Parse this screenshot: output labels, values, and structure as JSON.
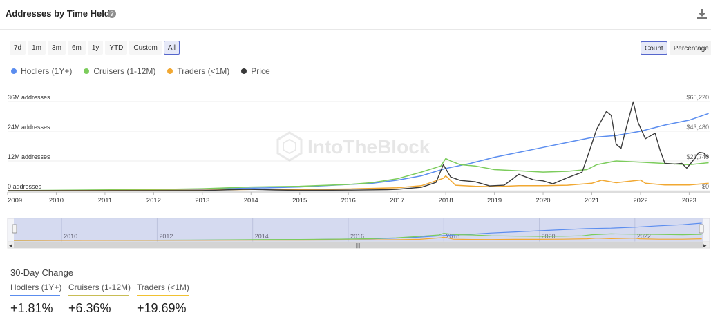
{
  "header": {
    "title": "Addresses by Time Held",
    "help_icon": "?"
  },
  "toolbar": {
    "ranges": [
      "7d",
      "1m",
      "3m",
      "6m",
      "1y",
      "YTD",
      "Custom",
      "All"
    ],
    "active_range": "All",
    "modes": [
      "Count",
      "Percentage"
    ],
    "active_mode": "Count"
  },
  "legend": [
    {
      "label": "Hodlers (1Y+)",
      "color": "#5b8def"
    },
    {
      "label": "Cruisers (1-12M)",
      "color": "#7ccc5c"
    },
    {
      "label": "Traders (<1M)",
      "color": "#f1a832"
    },
    {
      "label": "Price",
      "color": "#3a3a3a"
    }
  ],
  "watermark": "IntoTheBlock",
  "chart_data": {
    "type": "line",
    "x_ticks": [
      "2009",
      "2010",
      "2011",
      "2012",
      "2013",
      "2014",
      "2015",
      "2016",
      "2017",
      "2018",
      "2019",
      "2020",
      "2021",
      "2022",
      "2023"
    ],
    "y_left_ticks": [
      "0 addresses",
      "12M addresses",
      "24M addresses",
      "36M addresses"
    ],
    "y_left_range": [
      0,
      36
    ],
    "y_right_ticks": [
      "$0",
      "$21,740",
      "$43,480",
      "$65,220"
    ],
    "y_right_range": [
      0,
      65220
    ],
    "grid": true,
    "series": [
      {
        "name": "Hodlers (1Y+)",
        "color": "#5b8def",
        "points": [
          [
            2009.0,
            0
          ],
          [
            2011.0,
            0.1
          ],
          [
            2012.0,
            0.3
          ],
          [
            2013.0,
            0.6
          ],
          [
            2014.0,
            1.0
          ],
          [
            2015.0,
            1.5
          ],
          [
            2016.0,
            2.5
          ],
          [
            2016.5,
            3.0
          ],
          [
            2017.0,
            4.2
          ],
          [
            2017.5,
            6.0
          ],
          [
            2018.0,
            9.0
          ],
          [
            2018.5,
            11.0
          ],
          [
            2019.0,
            13.5
          ],
          [
            2019.5,
            15.5
          ],
          [
            2020.0,
            17.5
          ],
          [
            2020.5,
            19.5
          ],
          [
            2021.0,
            21.5
          ],
          [
            2021.5,
            22.3
          ],
          [
            2022.0,
            24.0
          ],
          [
            2022.5,
            26.5
          ],
          [
            2023.0,
            28.5
          ],
          [
            2023.4,
            31.2
          ]
        ]
      },
      {
        "name": "Cruisers (1-12M)",
        "color": "#7ccc5c",
        "points": [
          [
            2009.0,
            0
          ],
          [
            2012.0,
            0.5
          ],
          [
            2013.0,
            0.8
          ],
          [
            2014.0,
            1.5
          ],
          [
            2015.0,
            1.8
          ],
          [
            2016.0,
            2.5
          ],
          [
            2016.5,
            3.3
          ],
          [
            2017.0,
            4.8
          ],
          [
            2017.5,
            7.5
          ],
          [
            2017.9,
            10.0
          ],
          [
            2018.0,
            13.0
          ],
          [
            2018.1,
            12.0
          ],
          [
            2018.3,
            10.5
          ],
          [
            2018.6,
            10.0
          ],
          [
            2019.0,
            8.5
          ],
          [
            2019.5,
            8.0
          ],
          [
            2020.0,
            7.5
          ],
          [
            2020.5,
            7.8
          ],
          [
            2020.9,
            8.5
          ],
          [
            2021.1,
            10.5
          ],
          [
            2021.5,
            12.0
          ],
          [
            2022.0,
            11.5
          ],
          [
            2022.5,
            11.0
          ],
          [
            2023.0,
            10.5
          ],
          [
            2023.4,
            11.3
          ]
        ]
      },
      {
        "name": "Traders (<1M)",
        "color": "#f1a832",
        "points": [
          [
            2009.0,
            0
          ],
          [
            2013.0,
            0.2
          ],
          [
            2014.0,
            0.5
          ],
          [
            2015.0,
            0.5
          ],
          [
            2016.0,
            0.7
          ],
          [
            2017.0,
            1.2
          ],
          [
            2017.5,
            2.0
          ],
          [
            2017.95,
            5.0
          ],
          [
            2018.0,
            6.0
          ],
          [
            2018.2,
            2.2
          ],
          [
            2018.6,
            1.8
          ],
          [
            2019.0,
            1.6
          ],
          [
            2019.5,
            2.0
          ],
          [
            2020.0,
            2.0
          ],
          [
            2020.5,
            2.2
          ],
          [
            2021.0,
            3.0
          ],
          [
            2021.2,
            4.2
          ],
          [
            2021.5,
            3.2
          ],
          [
            2022.0,
            4.3
          ],
          [
            2022.1,
            3.0
          ],
          [
            2022.5,
            2.3
          ],
          [
            2023.0,
            2.3
          ],
          [
            2023.4,
            3.0
          ]
        ]
      },
      {
        "name": "Price",
        "color": "#3a3a3a",
        "axis": "right",
        "points": [
          [
            2009.0,
            0
          ],
          [
            2013.0,
            100
          ],
          [
            2013.9,
            1000
          ],
          [
            2014.5,
            500
          ],
          [
            2015.0,
            250
          ],
          [
            2016.0,
            400
          ],
          [
            2016.8,
            700
          ],
          [
            2017.0,
            1000
          ],
          [
            2017.5,
            2500
          ],
          [
            2017.8,
            6000
          ],
          [
            2017.95,
            19000
          ],
          [
            2018.1,
            10000
          ],
          [
            2018.3,
            7500
          ],
          [
            2018.6,
            6500
          ],
          [
            2018.9,
            3500
          ],
          [
            2019.2,
            4000
          ],
          [
            2019.5,
            12000
          ],
          [
            2019.8,
            8000
          ],
          [
            2020.0,
            7200
          ],
          [
            2020.2,
            5000
          ],
          [
            2020.5,
            9500
          ],
          [
            2020.8,
            13500
          ],
          [
            2020.95,
            29000
          ],
          [
            2021.1,
            45000
          ],
          [
            2021.3,
            58000
          ],
          [
            2021.4,
            55000
          ],
          [
            2021.5,
            34000
          ],
          [
            2021.6,
            31000
          ],
          [
            2021.7,
            45000
          ],
          [
            2021.85,
            65000
          ],
          [
            2021.95,
            50000
          ],
          [
            2022.1,
            38000
          ],
          [
            2022.3,
            42000
          ],
          [
            2022.4,
            30000
          ],
          [
            2022.5,
            20000
          ],
          [
            2022.7,
            19500
          ],
          [
            2022.85,
            20000
          ],
          [
            2022.95,
            16500
          ],
          [
            2023.1,
            23000
          ],
          [
            2023.2,
            28000
          ],
          [
            2023.3,
            27500
          ],
          [
            2023.4,
            24000
          ]
        ]
      }
    ]
  },
  "navigator": {
    "x_ticks": [
      "2010",
      "2012",
      "2014",
      "2016",
      "2018",
      "2020",
      "2022"
    ],
    "scroll_left": "◂",
    "scroll_right": "▸",
    "grip": "|||"
  },
  "change": {
    "title": "30-Day Change",
    "items": [
      {
        "label": "Hodlers (1Y+)",
        "value": "+1.81%",
        "color": "#5b8def"
      },
      {
        "label": "Cruisers (1-12M)",
        "value": "+6.36%",
        "color": "#c9bd55"
      },
      {
        "label": "Traders (<1M)",
        "value": "+19.69%",
        "color": "#f1c232"
      }
    ]
  }
}
